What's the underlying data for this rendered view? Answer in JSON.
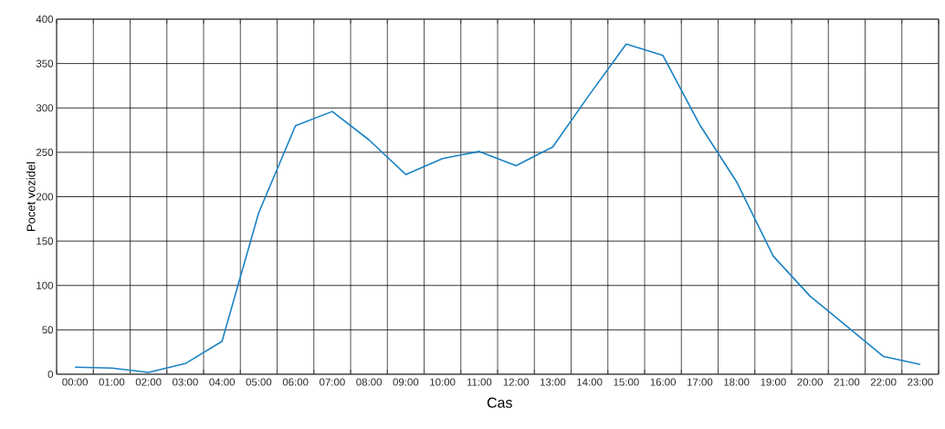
{
  "chart_data": {
    "type": "line",
    "xlabel": "Cas",
    "ylabel": "Pocet vozidel",
    "categories": [
      "00:00",
      "01:00",
      "02:00",
      "03:00",
      "04:00",
      "05:00",
      "06:00",
      "07:00",
      "08:00",
      "09:00",
      "10:00",
      "11:00",
      "12:00",
      "13:00",
      "14:00",
      "15:00",
      "16:00",
      "17:00",
      "18:00",
      "19:00",
      "20:00",
      "21:00",
      "22:00",
      "23:00"
    ],
    "series": [
      {
        "color": "#1a82c4",
        "values": [
          8,
          7,
          2,
          12,
          37,
          182,
          280,
          296,
          264,
          225,
          243,
          251,
          235,
          256,
          315,
          372,
          359,
          281,
          217,
          133,
          88,
          54,
          20,
          11
        ]
      }
    ],
    "ylim": [
      0,
      400
    ],
    "yticks": [
      0,
      50,
      100,
      150,
      200,
      250,
      300,
      350,
      400
    ],
    "grid": true,
    "marker": "none",
    "line_style": "solid"
  }
}
